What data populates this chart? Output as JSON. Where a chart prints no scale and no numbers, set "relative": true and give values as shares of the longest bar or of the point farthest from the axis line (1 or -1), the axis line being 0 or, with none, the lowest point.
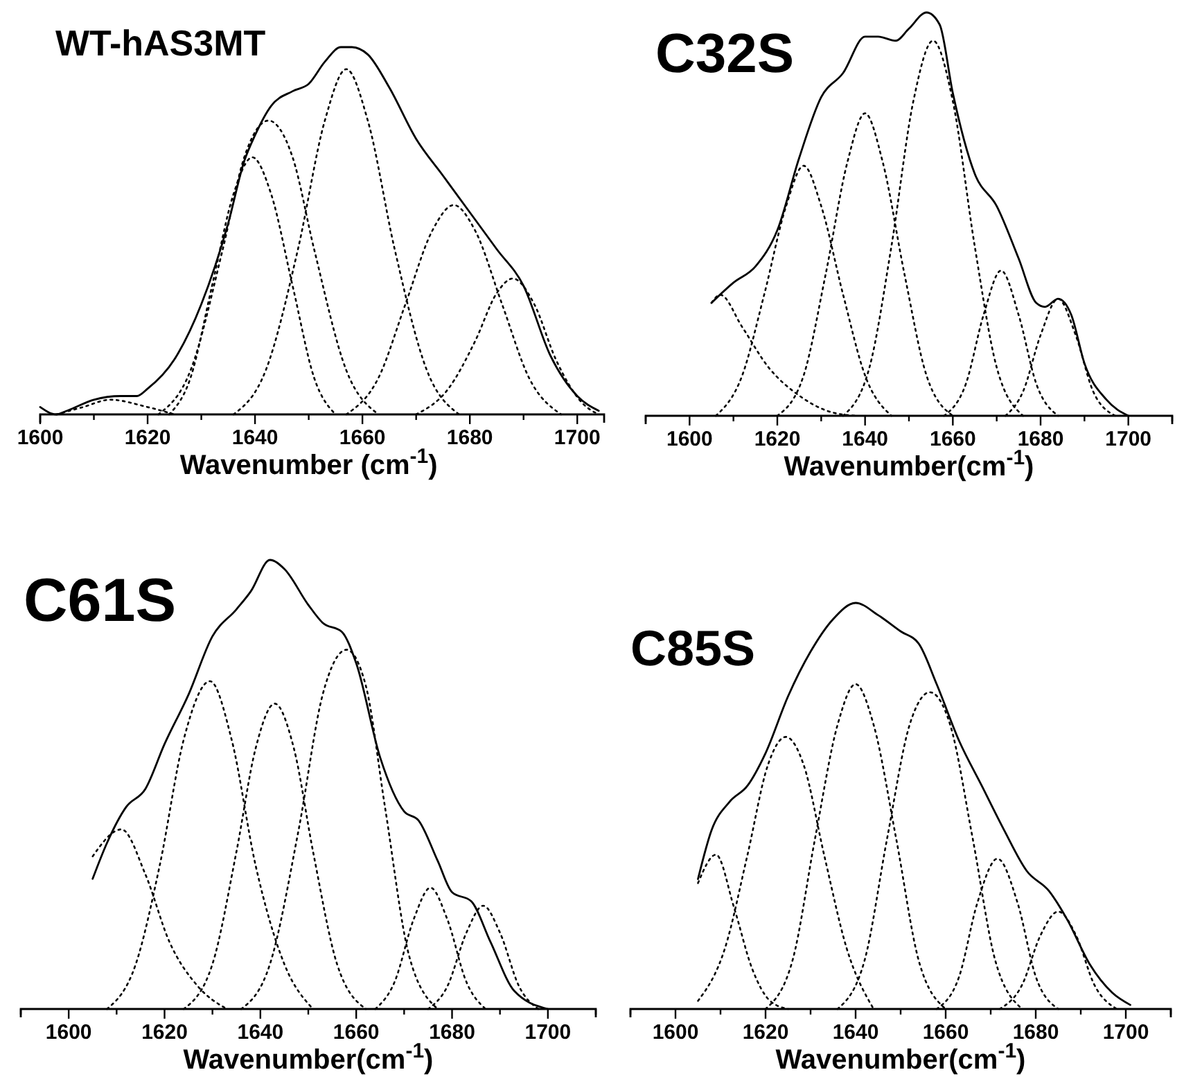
{
  "chart_data": [
    {
      "type": "line",
      "title": "WT-hAS3MT",
      "xlabel": "Wavenumber (cm$^{-1}$)",
      "relative": true,
      "xlim": [
        1600,
        1705
      ],
      "xticks": [
        1600,
        {
          "value": 1610,
          "label": null
        },
        1620,
        {
          "value": 1630,
          "label": null
        },
        1640,
        {
          "value": 1650,
          "label": null
        },
        1660,
        {
          "value": 1670,
          "label": null
        },
        1680,
        {
          "value": 1690,
          "label": null
        },
        1700
      ],
      "marker": "none",
      "series": [
        {
          "type": "line",
          "color": "#000000",
          "line_style": "solid",
          "x": [
            1600,
            1603,
            1605,
            1610,
            1615,
            1618,
            1620,
            1625,
            1630,
            1635,
            1638,
            1640,
            1643,
            1647,
            1650,
            1653,
            1656,
            1658,
            1661,
            1665,
            1670,
            1675,
            1680,
            1685,
            1690,
            1695,
            1700,
            1704
          ],
          "values": [
            0.02,
            0,
            0.01,
            0.04,
            0.05,
            0.05,
            0.07,
            0.15,
            0.3,
            0.52,
            0.69,
            0.76,
            0.84,
            0.88,
            0.9,
            0.96,
            1,
            1,
            0.98,
            0.89,
            0.75,
            0.65,
            0.55,
            0.45,
            0.35,
            0.16,
            0.05,
            0.01
          ]
        },
        {
          "type": "line",
          "color": "#000000",
          "line_style": "dotted",
          "x": [
            1603,
            1608,
            1613,
            1620,
            1625
          ],
          "values": [
            0,
            0.02,
            0.04,
            0.02,
            0
          ]
        },
        {
          "type": "line",
          "color": "#000000",
          "line_style": "dotted",
          "x": [
            1624,
            1628,
            1632,
            1636,
            1639.5,
            1643,
            1647,
            1651,
            1655
          ],
          "values": [
            0,
            0.1,
            0.35,
            0.6,
            0.7,
            0.6,
            0.35,
            0.1,
            0
          ]
        },
        {
          "type": "line",
          "color": "#000000",
          "line_style": "dotted",
          "x": [
            1622,
            1628,
            1634,
            1638,
            1642.5,
            1647,
            1651,
            1657,
            1663
          ],
          "values": [
            0,
            0.12,
            0.45,
            0.7,
            0.8,
            0.7,
            0.45,
            0.12,
            0
          ]
        },
        {
          "type": "line",
          "color": "#000000",
          "line_style": "dotted",
          "x": [
            1636,
            1642,
            1648,
            1653,
            1657,
            1661,
            1666,
            1672,
            1678
          ],
          "values": [
            0,
            0.12,
            0.45,
            0.8,
            0.94,
            0.8,
            0.45,
            0.12,
            0
          ]
        },
        {
          "type": "line",
          "color": "#000000",
          "line_style": "dotted",
          "x": [
            1657,
            1663,
            1668,
            1673,
            1677,
            1681,
            1686,
            1691,
            1697
          ],
          "values": [
            0,
            0.1,
            0.3,
            0.5,
            0.57,
            0.5,
            0.3,
            0.1,
            0
          ]
        },
        {
          "type": "line",
          "color": "#000000",
          "line_style": "dotted",
          "x": [
            1670,
            1676,
            1681,
            1685,
            1688,
            1692,
            1696,
            1701,
            1704
          ],
          "values": [
            0,
            0.07,
            0.2,
            0.33,
            0.37,
            0.3,
            0.15,
            0.03,
            0
          ]
        }
      ]
    },
    {
      "type": "line",
      "title": "C32S",
      "xlabel": "Wavenumber(cm$^{-1}$)",
      "relative": true,
      "xlim": [
        1590,
        1710
      ],
      "xticks": [
        {
          "value": 1590,
          "label": null
        },
        1600,
        {
          "value": 1610,
          "label": null
        },
        1620,
        {
          "value": 1630,
          "label": null
        },
        1640,
        {
          "value": 1650,
          "label": null
        },
        1660,
        {
          "value": 1670,
          "label": null
        },
        1680,
        {
          "value": 1690,
          "label": null
        },
        1700,
        {
          "value": 1710,
          "label": null
        }
      ],
      "marker": "none",
      "series": [
        {
          "type": "line",
          "color": "#000000",
          "line_style": "solid",
          "x": [
            1605,
            1610,
            1615,
            1620,
            1625,
            1630,
            1635,
            1640,
            1643,
            1647,
            1650,
            1654,
            1657,
            1660,
            1665,
            1670,
            1675,
            1679,
            1681,
            1684,
            1687,
            1690,
            1695,
            1700
          ],
          "values": [
            0.28,
            0.33,
            0.37,
            0.46,
            0.64,
            0.79,
            0.85,
            0.94,
            0.94,
            0.93,
            0.96,
            1,
            0.97,
            0.8,
            0.6,
            0.52,
            0.39,
            0.28,
            0.27,
            0.29,
            0.25,
            0.13,
            0.04,
            0
          ]
        },
        {
          "type": "line",
          "color": "#000000",
          "line_style": "dotted",
          "x": [
            1605,
            1607,
            1612,
            1618,
            1625,
            1632,
            1638
          ],
          "values": [
            0.28,
            0.3,
            0.22,
            0.12,
            0.05,
            0.01,
            0
          ]
        },
        {
          "type": "line",
          "color": "#000000",
          "line_style": "dotted",
          "x": [
            1606,
            1612,
            1617,
            1622,
            1626,
            1630,
            1635,
            1640,
            1646
          ],
          "values": [
            0,
            0.1,
            0.3,
            0.52,
            0.62,
            0.52,
            0.3,
            0.1,
            0
          ]
        },
        {
          "type": "line",
          "color": "#000000",
          "line_style": "dotted",
          "x": [
            1620,
            1626,
            1631,
            1636,
            1640,
            1644,
            1649,
            1654,
            1660
          ],
          "values": [
            0,
            0.1,
            0.35,
            0.63,
            0.75,
            0.63,
            0.35,
            0.1,
            0
          ]
        },
        {
          "type": "line",
          "color": "#000000",
          "line_style": "dotted",
          "x": [
            1635,
            1641,
            1646,
            1651,
            1655.5,
            1660,
            1665,
            1670,
            1676
          ],
          "values": [
            0,
            0.12,
            0.42,
            0.78,
            0.93,
            0.78,
            0.42,
            0.12,
            0
          ]
        },
        {
          "type": "line",
          "color": "#000000",
          "line_style": "dotted",
          "x": [
            1658,
            1663,
            1667,
            1671,
            1675,
            1679,
            1684
          ],
          "values": [
            0,
            0.08,
            0.25,
            0.36,
            0.25,
            0.08,
            0
          ]
        },
        {
          "type": "line",
          "color": "#000000",
          "line_style": "dotted",
          "x": [
            1672,
            1676,
            1680,
            1684,
            1688,
            1692,
            1697
          ],
          "values": [
            0,
            0.06,
            0.2,
            0.29,
            0.2,
            0.06,
            0
          ]
        }
      ]
    },
    {
      "type": "line",
      "title": "C61S",
      "xlabel": "Wavenumber(cm$^{-1}$)",
      "relative": true,
      "xlim": [
        1590,
        1710
      ],
      "xticks": [
        {
          "value": 1590,
          "label": null
        },
        1600,
        {
          "value": 1610,
          "label": null
        },
        1620,
        {
          "value": 1630,
          "label": null
        },
        1640,
        {
          "value": 1650,
          "label": null
        },
        1660,
        {
          "value": 1670,
          "label": null
        },
        1680,
        {
          "value": 1690,
          "label": null
        },
        1700,
        {
          "value": 1710,
          "label": null
        }
      ],
      "marker": "none",
      "series": [
        {
          "type": "line",
          "color": "#000000",
          "line_style": "solid",
          "x": [
            1605,
            1608,
            1612,
            1616,
            1620,
            1625,
            1630,
            1635,
            1638,
            1642,
            1645,
            1650,
            1653,
            1657,
            1660,
            1665,
            1670,
            1673,
            1677,
            1680,
            1684,
            1688,
            1693,
            1700
          ],
          "values": [
            0.29,
            0.37,
            0.45,
            0.49,
            0.59,
            0.7,
            0.83,
            0.89,
            0.93,
            1,
            0.98,
            0.9,
            0.86,
            0.84,
            0.77,
            0.56,
            0.44,
            0.42,
            0.33,
            0.26,
            0.24,
            0.15,
            0.04,
            0
          ]
        },
        {
          "type": "line",
          "color": "#000000",
          "line_style": "dotted",
          "x": [
            1605,
            1611,
            1616,
            1621,
            1627,
            1633
          ],
          "values": [
            0.34,
            0.4,
            0.3,
            0.15,
            0.05,
            0
          ]
        },
        {
          "type": "line",
          "color": "#000000",
          "line_style": "dotted",
          "x": [
            1608,
            1614,
            1619,
            1624,
            1629.5,
            1634,
            1639,
            1645,
            1651
          ],
          "values": [
            0,
            0.1,
            0.32,
            0.6,
            0.73,
            0.6,
            0.32,
            0.1,
            0
          ]
        },
        {
          "type": "line",
          "color": "#000000",
          "line_style": "dotted",
          "x": [
            1624,
            1630,
            1635,
            1639,
            1643,
            1647,
            1651,
            1656,
            1662
          ],
          "values": [
            0,
            0.1,
            0.35,
            0.58,
            0.68,
            0.58,
            0.35,
            0.1,
            0
          ]
        },
        {
          "type": "line",
          "color": "#000000",
          "line_style": "dotted",
          "x": [
            1636,
            1642,
            1648,
            1653,
            1658,
            1662,
            1666,
            1671,
            1677
          ],
          "values": [
            0,
            0.1,
            0.4,
            0.7,
            0.8,
            0.72,
            0.45,
            0.12,
            0
          ]
        },
        {
          "type": "line",
          "color": "#000000",
          "line_style": "dotted",
          "x": [
            1664,
            1668,
            1672,
            1675.5,
            1679,
            1683,
            1687
          ],
          "values": [
            0,
            0.06,
            0.2,
            0.27,
            0.2,
            0.06,
            0
          ]
        },
        {
          "type": "line",
          "color": "#000000",
          "line_style": "dotted",
          "x": [
            1675,
            1679,
            1683,
            1686.5,
            1690,
            1694,
            1698
          ],
          "values": [
            0,
            0.05,
            0.17,
            0.23,
            0.17,
            0.05,
            0
          ]
        }
      ]
    },
    {
      "type": "line",
      "title": "C85S",
      "xlabel": "Wavenumber(cm$^{-1}$)",
      "relative": true,
      "xlim": [
        1590,
        1710
      ],
      "xticks": [
        {
          "value": 1590,
          "label": null
        },
        1600,
        {
          "value": 1610,
          "label": null
        },
        1620,
        {
          "value": 1630,
          "label": null
        },
        1640,
        {
          "value": 1650,
          "label": null
        },
        1660,
        {
          "value": 1670,
          "label": null
        },
        1680,
        {
          "value": 1690,
          "label": null
        },
        1700,
        {
          "value": 1710,
          "label": null
        }
      ],
      "marker": "none",
      "series": [
        {
          "type": "line",
          "color": "#000000",
          "line_style": "solid",
          "x": [
            1605,
            1608,
            1612,
            1616,
            1620,
            1625,
            1630,
            1635,
            1640,
            1645,
            1650,
            1654,
            1658,
            1663,
            1668,
            1673,
            1678,
            1683,
            1687,
            1692,
            1697,
            1701
          ],
          "values": [
            0.32,
            0.44,
            0.51,
            0.55,
            0.63,
            0.77,
            0.88,
            0.96,
            1,
            0.97,
            0.93,
            0.9,
            0.8,
            0.66,
            0.55,
            0.44,
            0.34,
            0.29,
            0.22,
            0.11,
            0.04,
            0.01
          ]
        },
        {
          "type": "line",
          "color": "#000000",
          "line_style": "dotted",
          "x": [
            1605,
            1609,
            1613,
            1617,
            1621,
            1625
          ],
          "values": [
            0.31,
            0.38,
            0.25,
            0.1,
            0.02,
            0
          ]
        },
        {
          "type": "line",
          "color": "#000000",
          "line_style": "dotted",
          "x": [
            1605,
            1611,
            1616,
            1620.5,
            1624.5,
            1628.5,
            1633,
            1638,
            1644
          ],
          "values": [
            0.02,
            0.15,
            0.38,
            0.6,
            0.67,
            0.6,
            0.38,
            0.15,
            0
          ]
        },
        {
          "type": "line",
          "color": "#000000",
          "line_style": "dotted",
          "x": [
            1620,
            1626,
            1631,
            1636,
            1640,
            1644,
            1649,
            1654,
            1660
          ],
          "values": [
            0,
            0.12,
            0.42,
            0.7,
            0.8,
            0.7,
            0.42,
            0.12,
            0
          ]
        },
        {
          "type": "line",
          "color": "#000000",
          "line_style": "dotted",
          "x": [
            1636,
            1642,
            1647,
            1652,
            1656.5,
            1661,
            1666,
            1671,
            1677
          ],
          "values": [
            0,
            0.12,
            0.42,
            0.7,
            0.78,
            0.7,
            0.42,
            0.12,
            0
          ]
        },
        {
          "type": "line",
          "color": "#000000",
          "line_style": "dotted",
          "x": [
            1658,
            1663,
            1667,
            1671.5,
            1676,
            1680,
            1685
          ],
          "values": [
            0,
            0.08,
            0.26,
            0.37,
            0.26,
            0.08,
            0
          ]
        },
        {
          "type": "line",
          "color": "#000000",
          "line_style": "dotted",
          "x": [
            1672,
            1677,
            1681,
            1685,
            1689,
            1693,
            1698
          ],
          "values": [
            0,
            0.06,
            0.18,
            0.24,
            0.18,
            0.06,
            0
          ]
        }
      ]
    }
  ]
}
